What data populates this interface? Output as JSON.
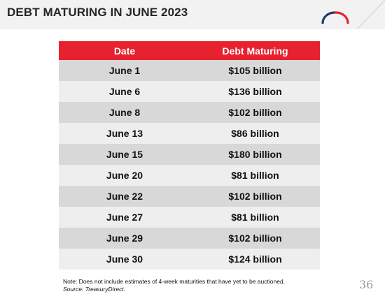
{
  "header": {
    "title": "DEBT MATURING IN JUNE 2023",
    "logo_icon": "arc-logo-icon",
    "colors": {
      "logo_blue": "#1f3a6e",
      "logo_red": "#e8212f",
      "band": "#f2f2f2"
    }
  },
  "table": {
    "header_color": "#e8212f",
    "columns": [
      "Date",
      "Debt Maturing"
    ],
    "rows": [
      {
        "date": "June 1",
        "amount": "$105 billion"
      },
      {
        "date": "June 6",
        "amount": "$136 billion"
      },
      {
        "date": "June 8",
        "amount": "$102 billion"
      },
      {
        "date": "June 13",
        "amount": "$86 billion"
      },
      {
        "date": "June 15",
        "amount": "$180 billion"
      },
      {
        "date": "June 20",
        "amount": "$81 billion"
      },
      {
        "date": "June 22",
        "amount": "$102 billion"
      },
      {
        "date": "June 27",
        "amount": "$81 billion"
      },
      {
        "date": "June 29",
        "amount": "$102 billion"
      },
      {
        "date": "June 30",
        "amount": "$124 billion"
      }
    ]
  },
  "footer": {
    "note": "Note: Does not include estimates of 4-week maturities that have yet to be auctioned.",
    "source": "Source: TreasuryDirect.",
    "page_number": "36"
  }
}
